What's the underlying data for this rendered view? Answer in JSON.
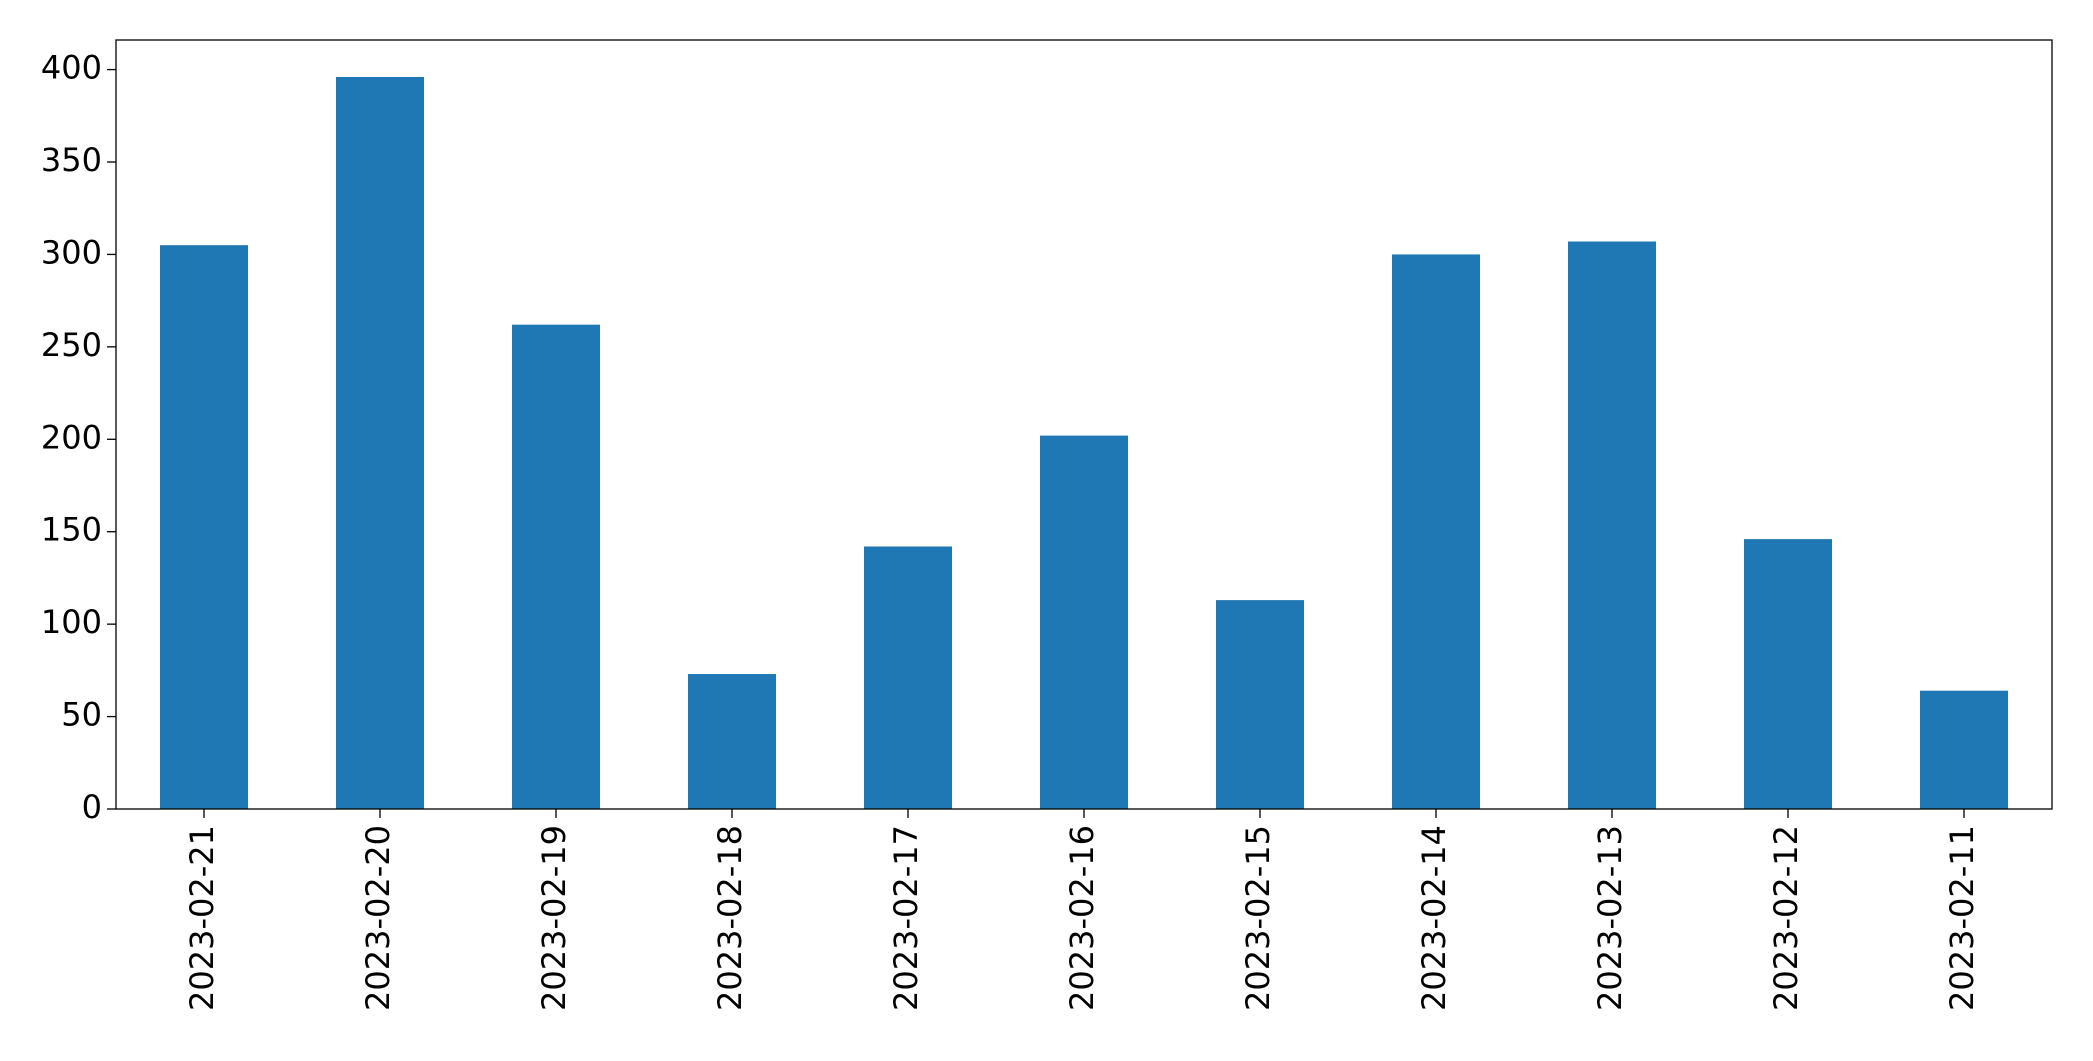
{
  "chart_data": {
    "type": "bar",
    "categories": [
      "2023-02-21",
      "2023-02-20",
      "2023-02-19",
      "2023-02-18",
      "2023-02-17",
      "2023-02-16",
      "2023-02-15",
      "2023-02-14",
      "2023-02-13",
      "2023-02-12",
      "2023-02-11"
    ],
    "values": [
      305,
      396,
      262,
      73,
      142,
      202,
      113,
      300,
      307,
      146,
      64
    ],
    "color": "#1f77b4",
    "ylim": [
      0,
      416
    ],
    "yticks": [
      0,
      50,
      100,
      150,
      200,
      250,
      300,
      350,
      400
    ],
    "grid": false
  }
}
